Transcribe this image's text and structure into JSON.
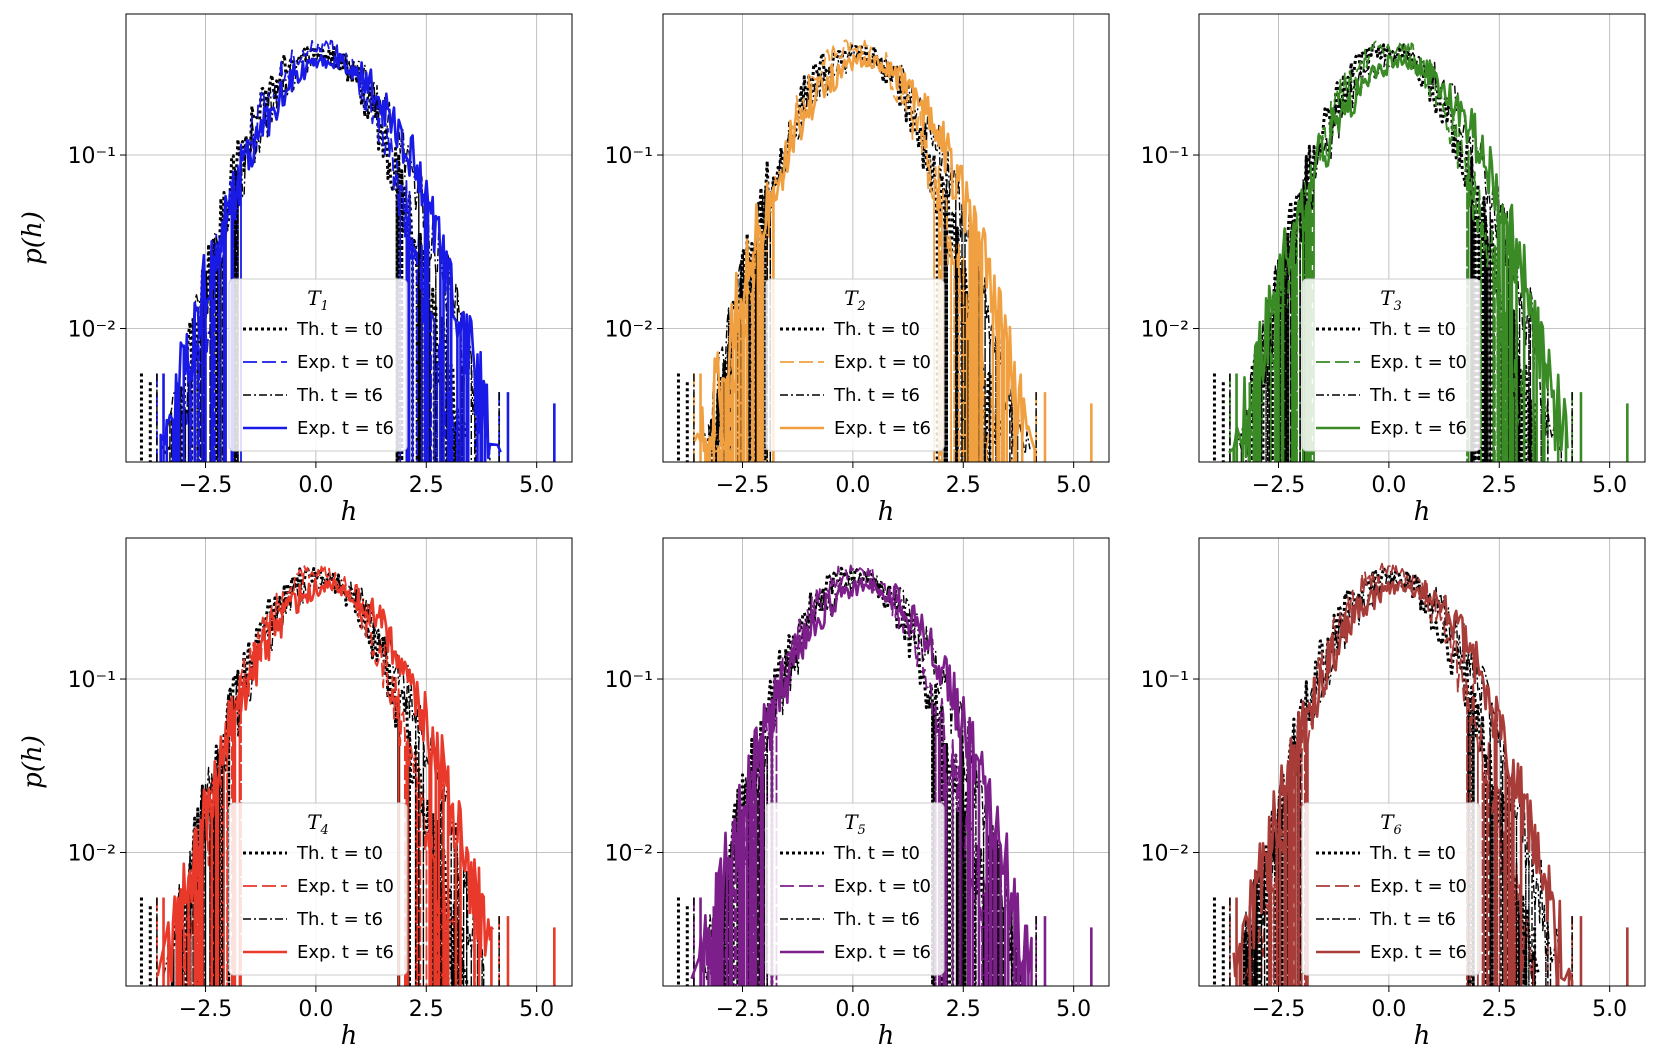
{
  "figure": {
    "rows": 2,
    "cols": 3
  },
  "chart_data": [
    {
      "type": "line",
      "legend_title": "T1",
      "legend_title_main": "T",
      "legend_title_sub": "1",
      "legend_position": "lower center",
      "xlabel": "h",
      "ylabel": "p(h)",
      "xlim": [
        -4.3,
        5.8
      ],
      "ylim": [
        0.0017,
        0.65
      ],
      "yscale": "log",
      "xticks": [
        -2.5,
        0.0,
        2.5,
        5.0
      ],
      "xtick_labels": [
        "−2.5",
        "0.0",
        "2.5",
        "5.0"
      ],
      "yticks": [
        0.1,
        0.01
      ],
      "ytick_labels": [
        "10⁻¹",
        "10⁻²"
      ],
      "grid": true,
      "color": "#1a1ae6",
      "series": [
        {
          "name": "Th. t = t0",
          "style": "dotted",
          "color": "#000000",
          "mean": 0.0,
          "sd": 1.0
        },
        {
          "name": "Exp. t = t0",
          "style": "dashed",
          "color": "#1a1ae6",
          "mean": 0.05,
          "sd": 0.95
        },
        {
          "name": "Th. t = t6",
          "style": "dashdot",
          "color": "#000000",
          "mean": 0.25,
          "sd": 1.1
        },
        {
          "name": "Exp. t = t6",
          "style": "solid",
          "color": "#1a1ae6",
          "mean": 0.3,
          "sd": 1.15
        }
      ]
    },
    {
      "type": "line",
      "legend_title": "T2",
      "legend_title_main": "T",
      "legend_title_sub": "2",
      "legend_position": "lower center",
      "xlabel": "h",
      "ylabel": "",
      "xlim": [
        -4.3,
        5.8
      ],
      "ylim": [
        0.0017,
        0.65
      ],
      "yscale": "log",
      "xticks": [
        -2.5,
        0.0,
        2.5,
        5.0
      ],
      "xtick_labels": [
        "−2.5",
        "0.0",
        "2.5",
        "5.0"
      ],
      "yticks": [
        0.1,
        0.01
      ],
      "ytick_labels": [
        "10⁻¹",
        "10⁻²"
      ],
      "grid": true,
      "color": "#f0a040",
      "series": [
        {
          "name": "Th. t = t0",
          "style": "dotted",
          "color": "#000000",
          "mean": 0.0,
          "sd": 1.0
        },
        {
          "name": "Exp. t = t0",
          "style": "dashed",
          "color": "#f0a040",
          "mean": 0.05,
          "sd": 0.95
        },
        {
          "name": "Th. t = t6",
          "style": "dashdot",
          "color": "#000000",
          "mean": 0.25,
          "sd": 1.1
        },
        {
          "name": "Exp. t = t6",
          "style": "solid",
          "color": "#f0a040",
          "mean": 0.3,
          "sd": 1.15
        }
      ]
    },
    {
      "type": "line",
      "legend_title": "T3",
      "legend_title_main": "T",
      "legend_title_sub": "3",
      "legend_position": "lower center",
      "xlabel": "h",
      "ylabel": "",
      "xlim": [
        -4.3,
        5.8
      ],
      "ylim": [
        0.0017,
        0.65
      ],
      "yscale": "log",
      "xticks": [
        -2.5,
        0.0,
        2.5,
        5.0
      ],
      "xtick_labels": [
        "−2.5",
        "0.0",
        "2.5",
        "5.0"
      ],
      "yticks": [
        0.1,
        0.01
      ],
      "ytick_labels": [
        "10⁻¹",
        "10⁻²"
      ],
      "grid": true,
      "color": "#3a8a26",
      "series": [
        {
          "name": "Th. t = t0",
          "style": "dotted",
          "color": "#000000",
          "mean": 0.0,
          "sd": 1.0
        },
        {
          "name": "Exp. t = t0",
          "style": "dashed",
          "color": "#3a8a26",
          "mean": 0.05,
          "sd": 0.95
        },
        {
          "name": "Th. t = t6",
          "style": "dashdot",
          "color": "#000000",
          "mean": 0.25,
          "sd": 1.1
        },
        {
          "name": "Exp. t = t6",
          "style": "solid",
          "color": "#3a8a26",
          "mean": 0.3,
          "sd": 1.15
        }
      ]
    },
    {
      "type": "line",
      "legend_title": "T4",
      "legend_title_main": "T",
      "legend_title_sub": "4",
      "legend_position": "lower center",
      "xlabel": "h",
      "ylabel": "p(h)",
      "xlim": [
        -4.3,
        5.8
      ],
      "ylim": [
        0.0017,
        0.65
      ],
      "yscale": "log",
      "xticks": [
        -2.5,
        0.0,
        2.5,
        5.0
      ],
      "xtick_labels": [
        "−2.5",
        "0.0",
        "2.5",
        "5.0"
      ],
      "yticks": [
        0.1,
        0.01
      ],
      "ytick_labels": [
        "10⁻¹",
        "10⁻²"
      ],
      "grid": true,
      "color": "#e8392a",
      "series": [
        {
          "name": "Th. t = t0",
          "style": "dotted",
          "color": "#000000",
          "mean": 0.0,
          "sd": 1.0
        },
        {
          "name": "Exp. t = t0",
          "style": "dashed",
          "color": "#e8392a",
          "mean": 0.05,
          "sd": 0.95
        },
        {
          "name": "Th. t = t6",
          "style": "dashdot",
          "color": "#000000",
          "mean": 0.25,
          "sd": 1.1
        },
        {
          "name": "Exp. t = t6",
          "style": "solid",
          "color": "#e8392a",
          "mean": 0.3,
          "sd": 1.15
        }
      ]
    },
    {
      "type": "line",
      "legend_title": "T5",
      "legend_title_main": "T",
      "legend_title_sub": "5",
      "legend_position": "lower center",
      "xlabel": "h",
      "ylabel": "",
      "xlim": [
        -4.3,
        5.8
      ],
      "ylim": [
        0.0017,
        0.65
      ],
      "yscale": "log",
      "xticks": [
        -2.5,
        0.0,
        2.5,
        5.0
      ],
      "xtick_labels": [
        "−2.5",
        "0.0",
        "2.5",
        "5.0"
      ],
      "yticks": [
        0.1,
        0.01
      ],
      "ytick_labels": [
        "10⁻¹",
        "10⁻²"
      ],
      "grid": true,
      "color": "#7d1f8a",
      "series": [
        {
          "name": "Th. t = t0",
          "style": "dotted",
          "color": "#000000",
          "mean": 0.0,
          "sd": 1.0
        },
        {
          "name": "Exp. t = t0",
          "style": "dashed",
          "color": "#7d1f8a",
          "mean": 0.05,
          "sd": 0.95
        },
        {
          "name": "Th. t = t6",
          "style": "dashdot",
          "color": "#000000",
          "mean": 0.25,
          "sd": 1.1
        },
        {
          "name": "Exp. t = t6",
          "style": "solid",
          "color": "#7d1f8a",
          "mean": 0.3,
          "sd": 1.15
        }
      ]
    },
    {
      "type": "line",
      "legend_title": "T6",
      "legend_title_main": "T",
      "legend_title_sub": "6",
      "legend_position": "lower center",
      "xlabel": "h",
      "ylabel": "",
      "xlim": [
        -4.3,
        5.8
      ],
      "ylim": [
        0.0017,
        0.65
      ],
      "yscale": "log",
      "xticks": [
        -2.5,
        0.0,
        2.5,
        5.0
      ],
      "xtick_labels": [
        "−2.5",
        "0.0",
        "2.5",
        "5.0"
      ],
      "yticks": [
        0.1,
        0.01
      ],
      "ytick_labels": [
        "10⁻¹",
        "10⁻²"
      ],
      "grid": true,
      "color": "#a83c38",
      "series": [
        {
          "name": "Th. t = t0",
          "style": "dotted",
          "color": "#000000",
          "mean": 0.0,
          "sd": 1.0
        },
        {
          "name": "Exp. t = t0",
          "style": "dashed",
          "color": "#a83c38",
          "mean": 0.05,
          "sd": 0.95
        },
        {
          "name": "Th. t = t6",
          "style": "dashdot",
          "color": "#000000",
          "mean": 0.25,
          "sd": 1.1
        },
        {
          "name": "Exp. t = t6",
          "style": "solid",
          "color": "#a83c38",
          "mean": 0.3,
          "sd": 1.15
        }
      ]
    }
  ]
}
